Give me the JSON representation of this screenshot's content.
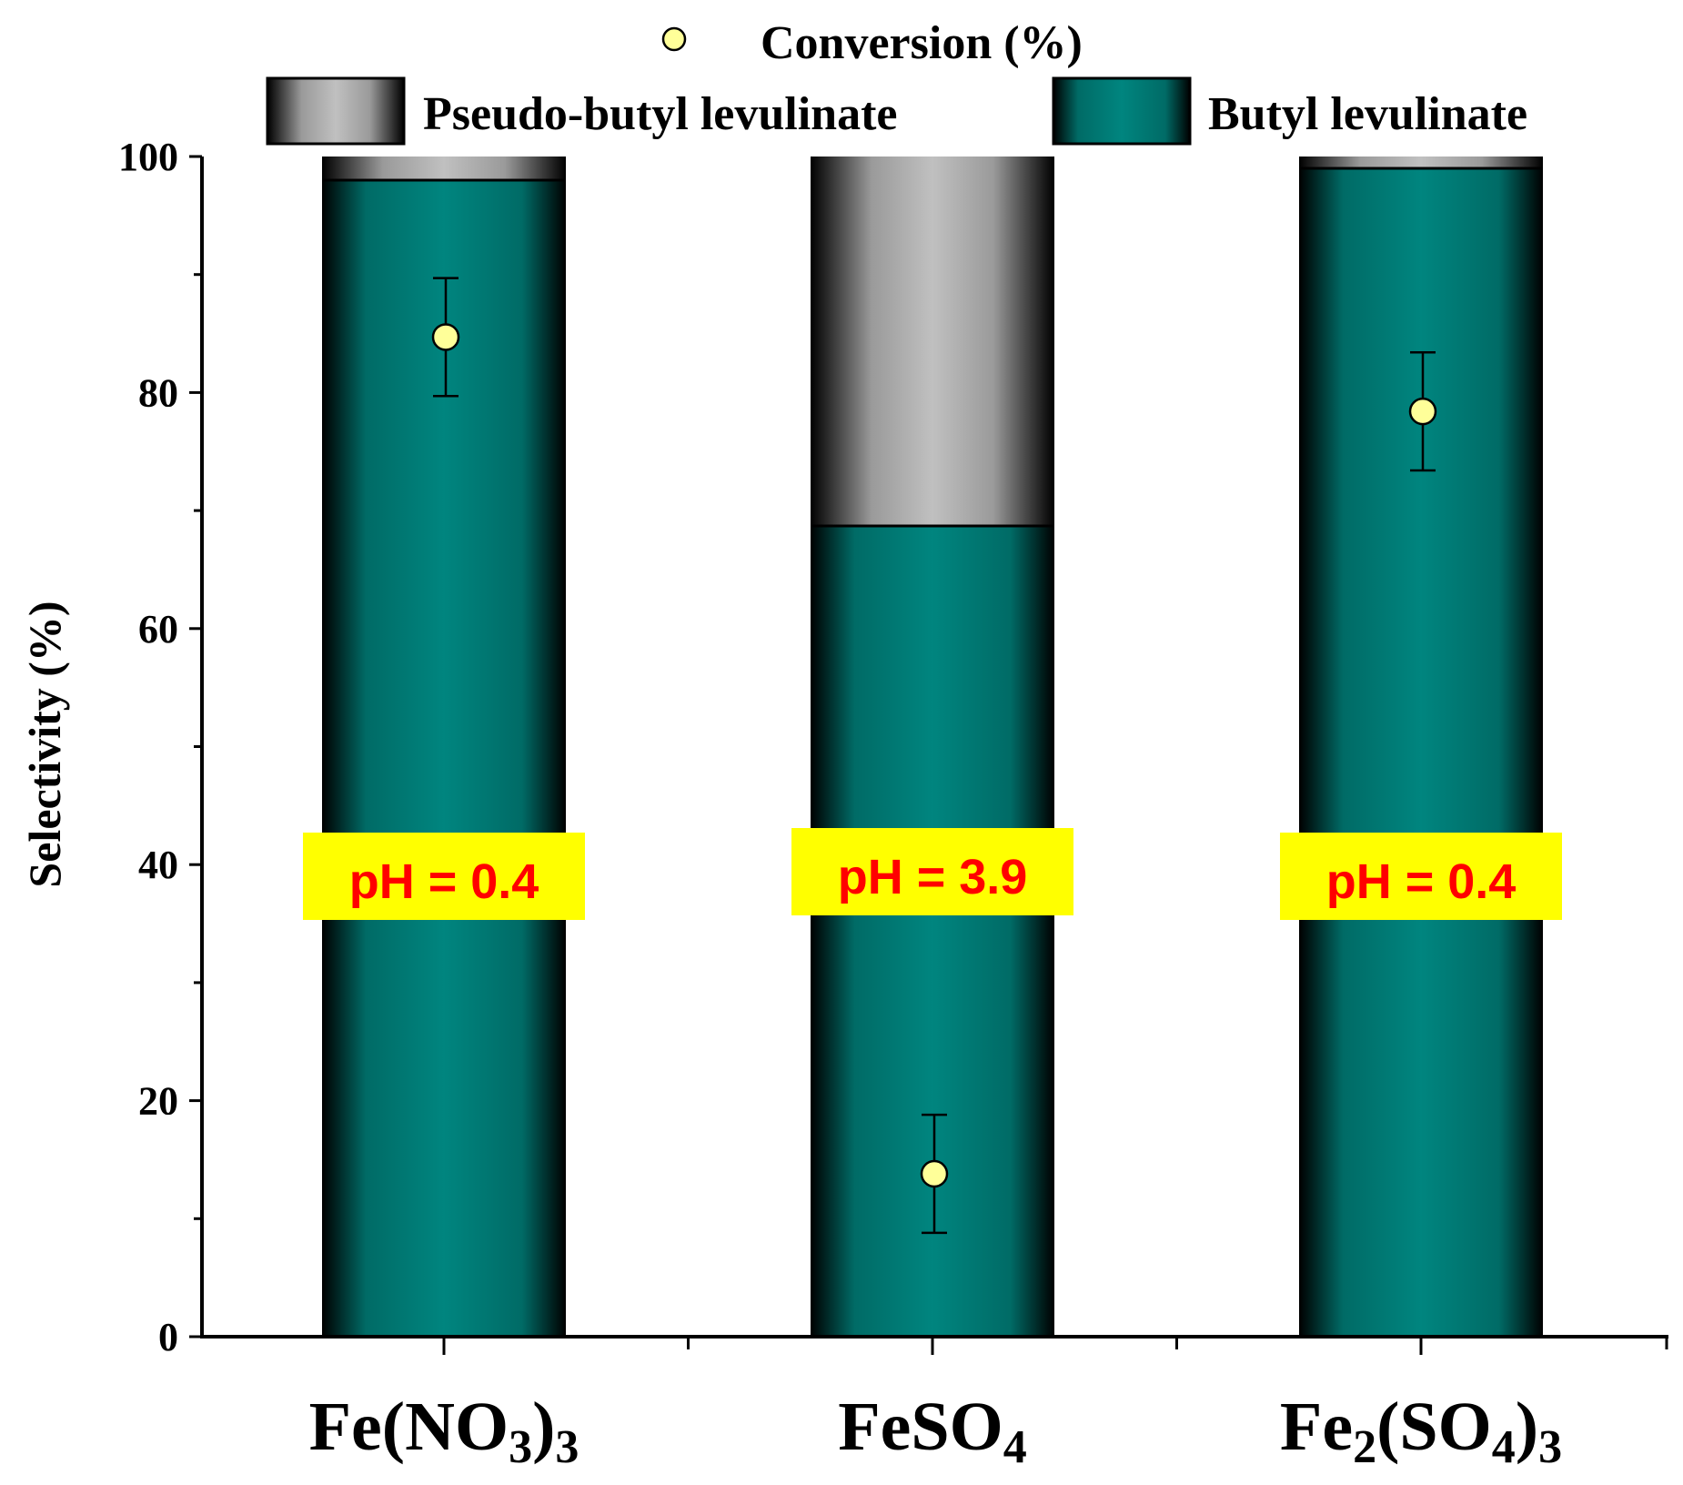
{
  "chart_data": {
    "type": "bar",
    "stacked": true,
    "ylabel": "Selectivity (%)",
    "xlabel": "",
    "ylim": [
      0,
      100
    ],
    "yticks": [
      0,
      20,
      40,
      60,
      80,
      100
    ],
    "categories": [
      {
        "main": "Fe(NO",
        "sub": "3",
        "tail": ")",
        "sub2": "3"
      },
      {
        "main": "FeSO",
        "sub": "4",
        "tail": "",
        "sub2": ""
      },
      {
        "main": "Fe",
        "sub": "2",
        "tail": "(SO",
        "sub2": "4",
        "tail2": ")",
        "sub3": "3"
      }
    ],
    "series": [
      {
        "name": "Butyl levulinate",
        "values": [
          98,
          68.7,
          99
        ],
        "color": "#00857f"
      },
      {
        "name": "Pseudo-butyl levulinate",
        "values": [
          2,
          31.3,
          1
        ],
        "color": "#c0c0c0"
      }
    ],
    "conversion": {
      "name": "Conversion (%)",
      "values": [
        84.7,
        13.8,
        78.4
      ],
      "errors": [
        5,
        5,
        5
      ],
      "color": "#ffff99"
    },
    "annotations": [
      "pH = 0.4",
      "pH = 3.9",
      "pH = 0.4"
    ],
    "annotation_colors": {
      "text": "#ff0000",
      "box": "#ffff00"
    },
    "legend": {
      "conversion_label": "Conversion (%)",
      "pseudo_label": "Pseudo-butyl levulinate",
      "butyl_label": "Butyl levulinate",
      "placement": "top"
    }
  }
}
